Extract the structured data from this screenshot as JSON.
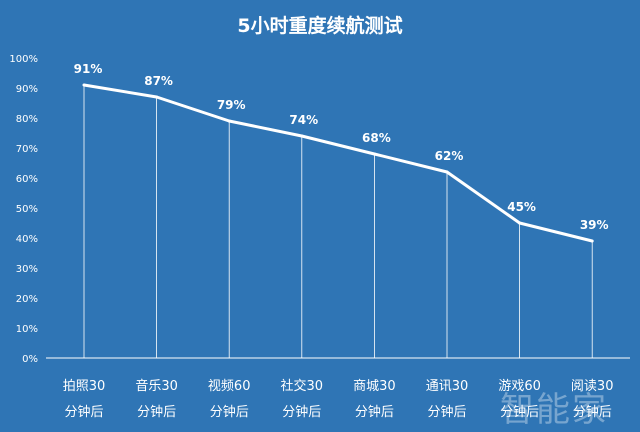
{
  "chart_data": {
    "type": "line",
    "title": "5小时重度续航测试",
    "categories": [
      [
        "拍照30",
        "分钟后"
      ],
      [
        "音乐30",
        "分钟后"
      ],
      [
        "视频60",
        "分钟后"
      ],
      [
        "社交30",
        "分钟后"
      ],
      [
        "商城30",
        "分钟后"
      ],
      [
        "通讯30",
        "分钟后"
      ],
      [
        "游戏60",
        "分钟后"
      ],
      [
        "阅读30",
        "分钟后"
      ]
    ],
    "values": [
      91,
      87,
      79,
      74,
      68,
      62,
      45,
      39
    ],
    "data_labels": [
      "91%",
      "87%",
      "79%",
      "74%",
      "68%",
      "62%",
      "45%",
      "39%"
    ],
    "ylim": [
      0,
      100
    ],
    "yticks": [
      "0%",
      "10%",
      "20%",
      "30%",
      "40%",
      "50%",
      "60%",
      "70%",
      "80%",
      "90%",
      "100%"
    ],
    "drop_lines": true,
    "grid": false,
    "colors": {
      "background": "#2f75b5",
      "line": "#ffffff",
      "text": "#ffffff"
    }
  },
  "watermark": "智能家"
}
